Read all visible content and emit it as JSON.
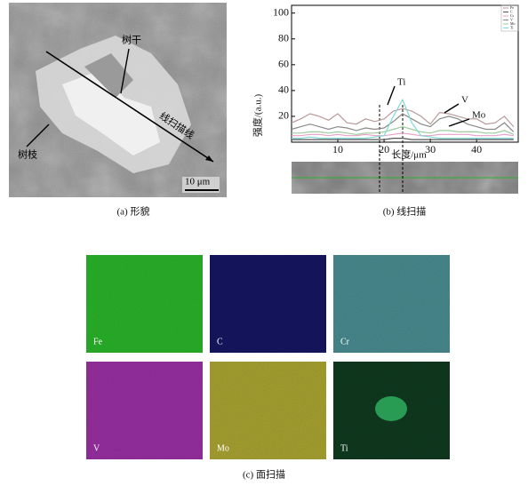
{
  "panels": {
    "a": {
      "caption": "(a) 形貌",
      "labels": [
        "树干",
        "线扫描线",
        "树枝"
      ],
      "scale_bar": "10 μm"
    },
    "b": {
      "caption": "(b) 线扫描"
    },
    "c": {
      "caption": "(c) 面扫描",
      "maps": [
        "Fe",
        "C",
        "Cr",
        "V",
        "Mo",
        "Ti"
      ]
    }
  },
  "chart_data": {
    "type": "line",
    "xlabel": "长度/μm",
    "ylabel": "强度/(a.u.)",
    "x": [
      0,
      2,
      4,
      6,
      8,
      10,
      12,
      14,
      16,
      18,
      20,
      22,
      24,
      26,
      28,
      30,
      32,
      34,
      36,
      38,
      40,
      42,
      44,
      46,
      48
    ],
    "series": [
      {
        "name": "Fe",
        "color": "#b89a9a",
        "values": [
          15,
          18,
          22,
          20,
          17,
          22,
          15,
          14,
          18,
          16,
          18,
          24,
          26,
          24,
          20,
          14,
          23,
          22,
          20,
          18,
          18,
          14,
          15,
          20,
          12
        ]
      },
      {
        "name": "C",
        "color": "#555555",
        "values": [
          2,
          2,
          2,
          2,
          2,
          2,
          2,
          2,
          2,
          2,
          2,
          3,
          3,
          2,
          2,
          2,
          2,
          2,
          2,
          2,
          2,
          2,
          2,
          2,
          2
        ]
      },
      {
        "name": "Cr",
        "color": "#e8a0c8",
        "values": [
          5,
          5,
          6,
          6,
          5,
          6,
          5,
          5,
          6,
          5,
          5,
          6,
          7,
          6,
          5,
          5,
          6,
          6,
          6,
          6,
          5,
          5,
          5,
          6,
          5
        ]
      },
      {
        "name": "V",
        "color": "#8a8a8a",
        "values": [
          10,
          12,
          14,
          12,
          10,
          12,
          11,
          9,
          11,
          10,
          11,
          16,
          22,
          18,
          14,
          12,
          18,
          20,
          18,
          14,
          12,
          10,
          10,
          15,
          8
        ]
      },
      {
        "name": "Mo",
        "color": "#9ccc9c",
        "values": [
          7,
          7,
          8,
          8,
          7,
          8,
          7,
          6,
          7,
          7,
          8,
          10,
          12,
          10,
          8,
          7,
          9,
          9,
          8,
          8,
          8,
          7,
          7,
          9,
          6
        ]
      },
      {
        "name": "Ti",
        "color": "#7fd8d8",
        "values": [
          3,
          3,
          4,
          3,
          3,
          3,
          3,
          3,
          3,
          4,
          5,
          20,
          33,
          15,
          5,
          4,
          3,
          3,
          3,
          3,
          3,
          3,
          3,
          3,
          3
        ]
      }
    ],
    "annotations": [
      "Ti",
      "V",
      "Mo"
    ],
    "xlim": [
      0,
      49
    ],
    "ylim": [
      0,
      106
    ],
    "xticks": [
      10,
      20,
      30,
      40
    ],
    "yticks": [
      20,
      40,
      60,
      80,
      100
    ]
  }
}
